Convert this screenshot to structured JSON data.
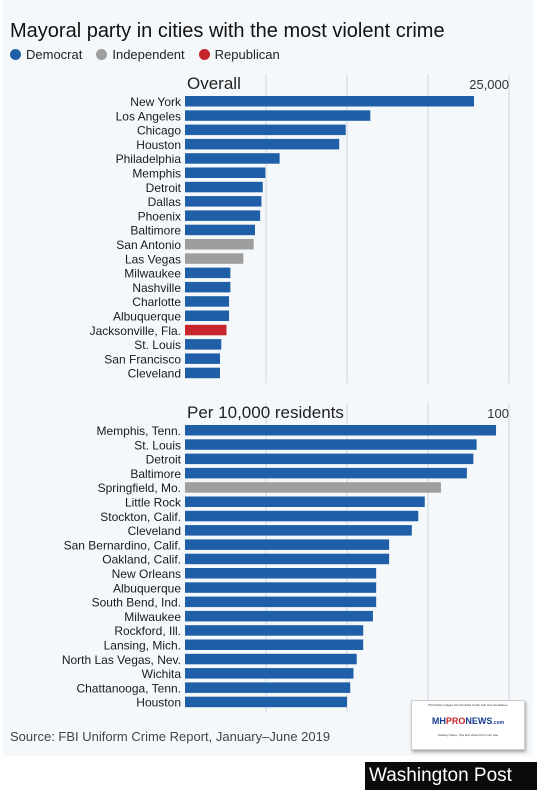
{
  "title": "Mayoral party in cities with the most violent crime",
  "legend": [
    {
      "label": "Democrat",
      "color": "#1f5fa8"
    },
    {
      "label": "Independent",
      "color": "#9e9e9e"
    },
    {
      "label": "Republican",
      "color": "#c8242c"
    }
  ],
  "source": "Source: FBI Uniform Crime Report, January–June 2019",
  "watermark": {
    "top_text": "Third Party Images Are Provided Under Fair Use Guidelines.",
    "logo_mh": "MH",
    "logo_pro": "PRO",
    "logo_news": "NEWS",
    "logo_suffix": ".com",
    "bottom_text": "Industry News, Tips and Views Pros Can Use"
  },
  "credit": "Washington Post",
  "colors": {
    "Democrat": "#1f5fa8",
    "Independent": "#9e9e9e",
    "Republican": "#c8242c",
    "gridline": "#cfd6de"
  },
  "chart_data": [
    {
      "type": "bar",
      "orientation": "horizontal",
      "title": "Overall",
      "max_label": "25,000",
      "xlim": [
        0,
        25000
      ],
      "grid": true,
      "categories": [
        "New York",
        "Los Angeles",
        "Chicago",
        "Houston",
        "Philadelphia",
        "Memphis",
        "Detroit",
        "Dallas",
        "Phoenix",
        "Baltimore",
        "San Antonio",
        "Las Vegas",
        "Milwaukee",
        "Nashville",
        "Charlotte",
        "Albuquerque",
        "Jacksonville, Fla.",
        "St. Louis",
        "San Francisco",
        "Cleveland"
      ],
      "values": [
        22300,
        14300,
        12400,
        11900,
        7300,
        6200,
        6000,
        5900,
        5800,
        5400,
        5300,
        4500,
        3500,
        3500,
        3400,
        3400,
        3200,
        2800,
        2700,
        2700
      ],
      "party": [
        "Democrat",
        "Democrat",
        "Democrat",
        "Democrat",
        "Democrat",
        "Democrat",
        "Democrat",
        "Democrat",
        "Democrat",
        "Democrat",
        "Independent",
        "Independent",
        "Democrat",
        "Democrat",
        "Democrat",
        "Democrat",
        "Republican",
        "Democrat",
        "Democrat",
        "Democrat"
      ]
    },
    {
      "type": "bar",
      "orientation": "horizontal",
      "title": "Per 10,000 residents",
      "max_label": "100",
      "xlim": [
        0,
        100
      ],
      "grid": true,
      "categories": [
        "Memphis, Tenn.",
        "St. Louis",
        "Detroit",
        "Baltimore",
        "Springfield, Mo.",
        "Little Rock",
        "Stockton, Calif.",
        "Cleveland",
        "San Bernardino, Calif.",
        "Oakland, Calif.",
        "New Orleans",
        "Albuquerque",
        "South Bend, Ind.",
        "Milwaukee",
        "Rockford, Ill.",
        "Lansing, Mich.",
        "North Las Vegas, Nev.",
        "Wichita",
        "Chattanooga, Tenn.",
        "Houston"
      ],
      "values": [
        96,
        90,
        89,
        87,
        79,
        74,
        72,
        70,
        63,
        63,
        59,
        59,
        59,
        58,
        55,
        55,
        53,
        52,
        51,
        50
      ],
      "party": [
        "Democrat",
        "Democrat",
        "Democrat",
        "Democrat",
        "Independent",
        "Democrat",
        "Democrat",
        "Democrat",
        "Democrat",
        "Democrat",
        "Democrat",
        "Democrat",
        "Democrat",
        "Democrat",
        "Democrat",
        "Democrat",
        "Democrat",
        "Democrat",
        "Democrat",
        "Democrat"
      ]
    }
  ]
}
